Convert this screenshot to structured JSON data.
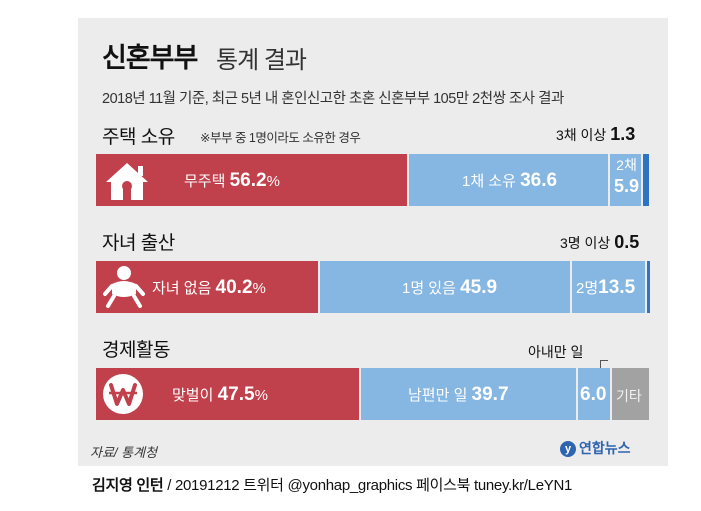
{
  "header": {
    "title_bold": "신혼부부",
    "title_rest": "통계 결과",
    "subtitle": "2018년 11월 기준, 최근 5년 내 혼인신고한 초혼 신혼부부 105만 2천쌍 조사 결과"
  },
  "colors": {
    "red": "#c0404c",
    "light_blue": "#86b6e2",
    "dark_blue": "#2f74c0",
    "gray": "#a2a2a2",
    "background": "#ececec"
  },
  "chart_data": [
    {
      "type": "bar",
      "title": "주택 소유",
      "note": "※부부 중 1명이라도 소유한 경우",
      "icon": "house-icon",
      "unit": "%",
      "segments": [
        {
          "label": "무주택",
          "value": 56.2,
          "color": "#c0404c"
        },
        {
          "label": "1채 소유",
          "value": 36.6,
          "color": "#86b6e2"
        },
        {
          "label": "2채",
          "value": 5.9,
          "color": "#86b6e2"
        },
        {
          "label": "3채 이상",
          "value": 1.3,
          "color": "#2f74c0"
        }
      ]
    },
    {
      "type": "bar",
      "title": "자녀 출산",
      "icon": "baby-icon",
      "unit": "%",
      "segments": [
        {
          "label": "자녀 없음",
          "value": 40.2,
          "color": "#c0404c"
        },
        {
          "label": "1명 있음",
          "value": 45.9,
          "color": "#86b6e2"
        },
        {
          "label": "2명",
          "value": 13.5,
          "color": "#86b6e2"
        },
        {
          "label": "3명 이상",
          "value": 0.5,
          "color": "#2f74c0"
        }
      ]
    },
    {
      "type": "bar",
      "title": "경제활동",
      "icon": "won-coin-icon",
      "unit": "%",
      "segments": [
        {
          "label": "맞벌이",
          "value": 47.5,
          "color": "#c0404c"
        },
        {
          "label": "남편만 일",
          "value": 39.7,
          "color": "#86b6e2"
        },
        {
          "label": "아내만 일",
          "value": 6.0,
          "color": "#86b6e2"
        },
        {
          "label": "기타",
          "value": null,
          "color": "#a2a2a2"
        }
      ]
    }
  ],
  "labels": {
    "r1_red": "무주택",
    "r1_red_val": "56.2",
    "pct": "%",
    "r1_b1": "1채 소유",
    "r1_b1_val": "36.6",
    "r1_b2_top": "2채",
    "r1_b2_val": "5.9",
    "r1_callout": "3채 이상",
    "r1_callout_val": "1.3",
    "r2_red": "자녀 없음",
    "r2_red_val": "40.2",
    "r2_b1": "1명 있음",
    "r2_b1_val": "45.9",
    "r2_b2": "2명",
    "r2_b2_val": "13.5",
    "r2_callout": "3명 이상",
    "r2_callout_val": "0.5",
    "r3_red": "맞벌이",
    "r3_red_val": "47.5",
    "r3_b1": "남편만 일",
    "r3_b1_val": "39.7",
    "r3_b2_val": "6.0",
    "r3_callout": "아내만 일",
    "r3_gray": "기타"
  },
  "footer": {
    "source": "자료/ 통계청",
    "logo": "연합뉴스",
    "logo_mark": "y",
    "credit_name": "김지영 인턴",
    "credit_rest": " / 20191212  트위터 @yonhap_graphics  페이스북 tuney.kr/LeYN1"
  }
}
